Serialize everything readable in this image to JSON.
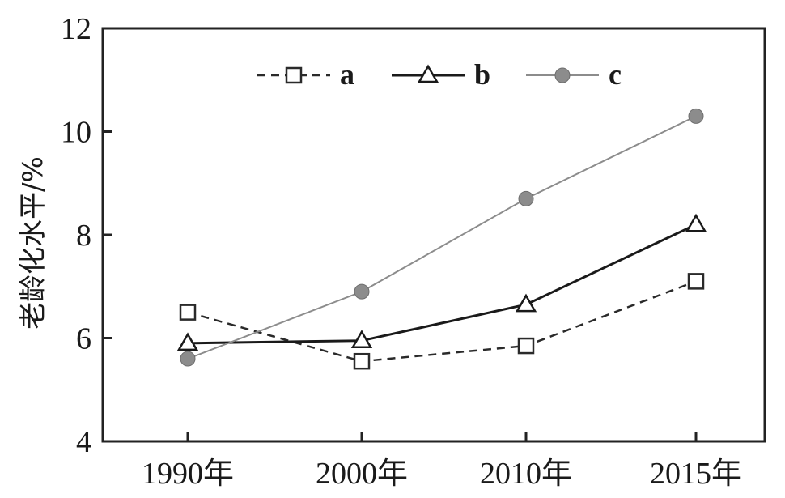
{
  "chart_data": {
    "type": "line",
    "title": "",
    "xlabel": "",
    "ylabel": "老龄化水平/%",
    "categories": [
      "1990年",
      "2000年",
      "2010年",
      "2015年"
    ],
    "ylim": [
      4,
      12
    ],
    "yticks": [
      4,
      6,
      8,
      10,
      12
    ],
    "grid": false,
    "legend_position": "top",
    "series": [
      {
        "name": "a",
        "values": [
          6.5,
          5.55,
          5.85,
          7.1
        ],
        "line_style": "dashed",
        "marker": "open-square",
        "color": "#2a2a2a"
      },
      {
        "name": "b",
        "values": [
          5.9,
          5.95,
          6.65,
          8.2
        ],
        "line_style": "solid",
        "marker": "open-triangle",
        "color": "#1a1a1a"
      },
      {
        "name": "c",
        "values": [
          5.6,
          6.9,
          8.7,
          10.3
        ],
        "line_style": "solid-gray",
        "marker": "filled-circle",
        "color": "#8c8c8c"
      }
    ]
  }
}
